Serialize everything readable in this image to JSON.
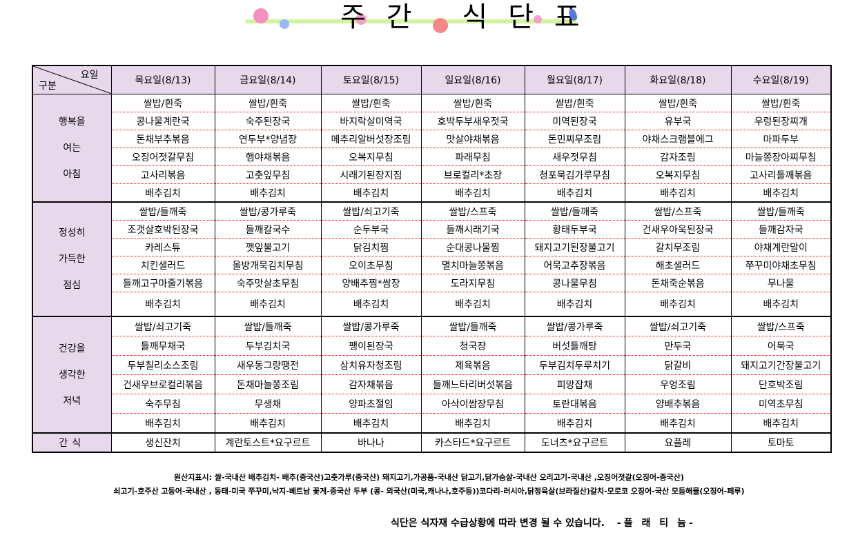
{
  "title": "주간 식단표",
  "header": {
    "corner_top": "요일",
    "corner_bottom": "구분",
    "days": [
      "목요일(8/13)",
      "금요일(8/14)",
      "토요일(8/15)",
      "일요일(8/16)",
      "월요일(8/17)",
      "화요일(8/18)",
      "수요일(8/19)"
    ]
  },
  "meals": [
    {
      "label": [
        "행복을",
        "여는",
        "아침"
      ],
      "rows": [
        [
          "쌀밥/흰죽",
          "쌀밥/흰죽",
          "쌀밥/흰죽",
          "쌀밥/흰죽",
          "쌀밥/흰죽",
          "쌀밥/흰죽",
          "쌀밥/흰죽"
        ],
        [
          "콩나물계란국",
          "숙주된장국",
          "바지락살미역국",
          "호박두부새우젓국",
          "미역된장국",
          "유부국",
          "우렁된장찌개"
        ],
        [
          "돈채부추볶음",
          "연두부*양념장",
          "메추리알버섯장조림",
          "맛살야채볶음",
          "돈민찌무조림",
          "야채스크램블에그",
          "마파두부"
        ],
        [
          "오징어젓갈무침",
          "햄야채볶음",
          "오복지무침",
          "파래무침",
          "새우젓무침",
          "감자조림",
          "마늘쫑장아찌무침"
        ],
        [
          "고사리볶음",
          "고춧잎무침",
          "시래기된장지짐",
          "브로컬리*초장",
          "청포묵김가루무침",
          "오복지무침",
          "고사리들깨볶음"
        ],
        [
          "배추김치",
          "배추김치",
          "배추김치",
          "배추김치",
          "배추김치",
          "배추김치",
          "배추김치"
        ]
      ]
    },
    {
      "label": [
        "정성히",
        "가득한",
        "점심"
      ],
      "rows": [
        [
          "쌀밥/들깨죽",
          "쌀밥/콩가루죽",
          "쌀밥/쇠고기죽",
          "쌀밥/스프죽",
          "쌀밥/들깨죽",
          "쌀밥/스프죽",
          "쌀밥/들깨죽"
        ],
        [
          "조갯살호박된장국",
          "들깨칼국수",
          "순두부국",
          "들깨시래기국",
          "황태두부국",
          "건새우아욱된장국",
          "들깨감자국"
        ],
        [
          "카레스튜",
          "깻잎불고기",
          "닭김치찜",
          "순대콩나물찜",
          "돼지고기된장불고기",
          "갈치무조림",
          "야채계란말이"
        ],
        [
          "치킨샐러드",
          "올방개묵김치무침",
          "오이초무침",
          "멸치마늘쫑볶음",
          "어묵고추장볶음",
          "해초샐러드",
          "쭈꾸미야채초무침"
        ],
        [
          "들깨고구마줄기볶음",
          "숙주맛살초무침",
          "양배추찜*쌈장",
          "도라지무침",
          "콩나물무침",
          "돈채죽순볶음",
          "무나물"
        ],
        [
          "배추김치",
          "배추김치",
          "배추김치",
          "배추김치",
          "배추김치",
          "배추김치",
          "배추김치"
        ]
      ]
    },
    {
      "label": [
        "건강을",
        "생각한",
        "저녁"
      ],
      "rows": [
        [
          "쌀밥/쇠고기죽",
          "쌀밥/들깨죽",
          "쌀밥/콩가루죽",
          "쌀밥/들깨죽",
          "쌀밥/콩가루죽",
          "쌀밥/쇠고기죽",
          "쌀밥/스프죽"
        ],
        [
          "들깨무채국",
          "두부김치국",
          "팽이된장국",
          "청국장",
          "버섯들깨탕",
          "만두국",
          "어묵국"
        ],
        [
          "두부칠리소스조림",
          "새우동그랑땡전",
          "삼치유자청조림",
          "제육볶음",
          "두부김치두루치기",
          "닭갈비",
          "돼지고기간장불고기"
        ],
        [
          "건새우브로컬리볶음",
          "돈채마늘쫑조림",
          "감자채볶음",
          "들깨느타리버섯볶음",
          "피망잡채",
          "우엉조림",
          "단호박조림"
        ],
        [
          "숙주무침",
          "무생채",
          "양파초절임",
          "아삭이쌈장무침",
          "토란대볶음",
          "양배추볶음",
          "미역초무침"
        ],
        [
          "배추김치",
          "배추김치",
          "배추김치",
          "배추김치",
          "배추김치",
          "배추김치",
          "배추김치"
        ]
      ]
    }
  ],
  "snack": {
    "label": "간식",
    "items": [
      "생신잔치",
      "계란토스트*요구르트",
      "바나나",
      "카스타드*요구르트",
      "도너츠*요구르트",
      "요플레",
      "토마토"
    ]
  },
  "origin_notes": [
    "원산지표시: 쌀-국내산   배추김치- 배추(중국산)고춧가루(중국산) 돼지고기,가공품-국내산 닭고기,닭가슴살-국내산 오리고기-국내산 ,오징어젓갈(오징어-중국산)",
    "쇠고기-호주산 고등어-국내산 , 동태-미국  쭈꾸미,낙지-베트남  꽃게-중국산   두부 (콩- 외국산(미국,캐나나,호주등))코다리-러시아,닭정육살(브라질산)갈치-모로코 오징어-국산 모듬해물(오징어-페루)"
  ],
  "footer": {
    "notice": "식단은 식자재 수급상황에 따라 변경 될 수 있습니다.",
    "signature": "-플 래 티 늄-"
  },
  "colors": {
    "header_bg": "#e8d8ec",
    "divider": "#e00000"
  }
}
